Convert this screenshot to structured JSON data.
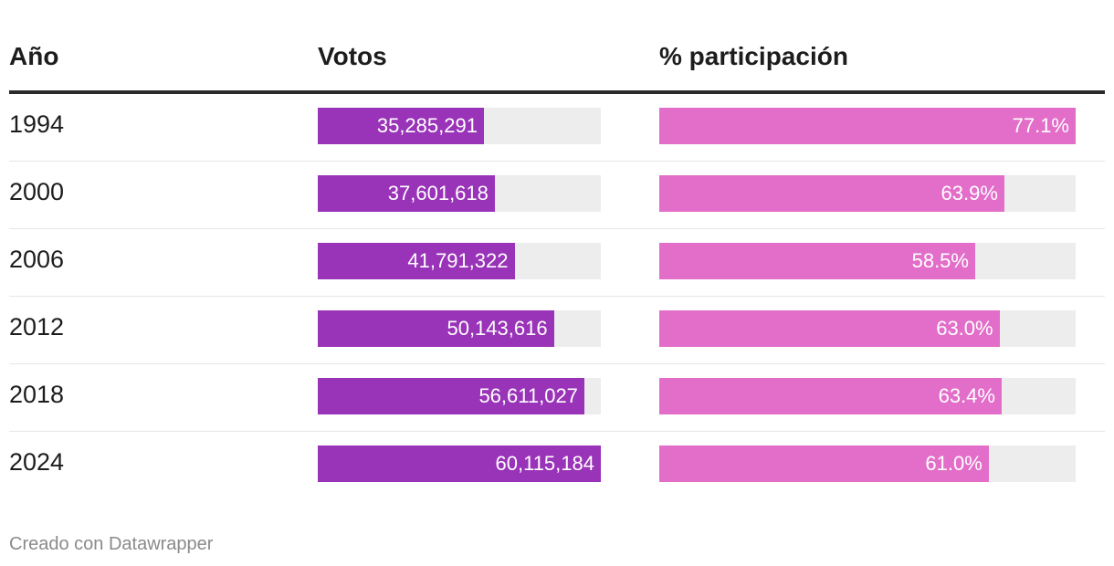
{
  "headers": {
    "year": "Año",
    "votes": "Votos",
    "participation": "% participación"
  },
  "colors": {
    "votes_bar": "#9933b8",
    "participation_bar": "#e26ec9",
    "track": "#ededed",
    "header_rule": "#2b2b2b"
  },
  "chart_data": {
    "type": "table",
    "columns": [
      "Año",
      "Votos",
      "% participación"
    ],
    "votes_max": 60115184,
    "participation_max": 77.1,
    "rows": [
      {
        "year": "1994",
        "votes": 35285291,
        "votes_label": "35,285,291",
        "participation": 77.1,
        "participation_label": "77.1%"
      },
      {
        "year": "2000",
        "votes": 37601618,
        "votes_label": "37,601,618",
        "participation": 63.9,
        "participation_label": "63.9%"
      },
      {
        "year": "2006",
        "votes": 41791322,
        "votes_label": "41,791,322",
        "participation": 58.5,
        "participation_label": "58.5%"
      },
      {
        "year": "2012",
        "votes": 50143616,
        "votes_label": "50,143,616",
        "participation": 63.0,
        "participation_label": "63.0%"
      },
      {
        "year": "2018",
        "votes": 56611027,
        "votes_label": "56,611,027",
        "participation": 63.4,
        "participation_label": "63.4%"
      },
      {
        "year": "2024",
        "votes": 60115184,
        "votes_label": "60,115,184",
        "participation": 61.0,
        "participation_label": "61.0%"
      }
    ]
  },
  "footer": {
    "credit": "Creado con Datawrapper"
  }
}
